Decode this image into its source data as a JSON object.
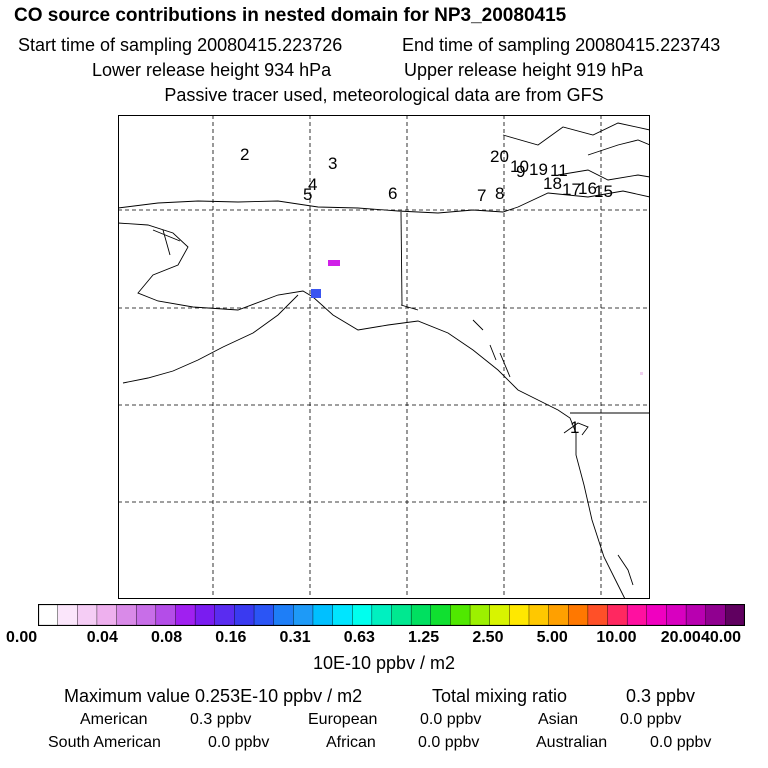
{
  "header": {
    "title": "CO  source contributions in nested domain for NP3_20080415",
    "start": "Start time of sampling 20080415.223726",
    "end": "End time of sampling 20080415.223743",
    "lower": "Lower release height  934 hPa",
    "upper": "Upper release height  919 hPa",
    "note": "Passive tracer used, meteorological data are from GFS"
  },
  "map": {
    "markers": [
      "2",
      "3",
      "4",
      "5",
      "6",
      "7",
      "8",
      "20",
      "10",
      "9",
      "19",
      "11",
      "18",
      "17",
      "16",
      "15",
      "1"
    ]
  },
  "colorbar": {
    "colors": [
      "#ffffff",
      "#fbe6fb",
      "#f5cdf5",
      "#eeb0ee",
      "#d98ae8",
      "#c86ee8",
      "#b44de8",
      "#a020f0",
      "#7a1cf0",
      "#5a2cf0",
      "#3a3af0",
      "#2b55f5",
      "#1e7ef7",
      "#1e9af7",
      "#00c0ff",
      "#00e5ff",
      "#00ffee",
      "#00f0c0",
      "#00e890",
      "#00e060",
      "#10e030",
      "#50e800",
      "#9cf000",
      "#d8f400",
      "#ffe800",
      "#ffc800",
      "#ffa000",
      "#ff7800",
      "#ff5028",
      "#ff2860",
      "#ff10a0",
      "#f000c0",
      "#d800c0",
      "#b800b0",
      "#900090",
      "#600060"
    ],
    "ticks": [
      "0.00",
      "0.04",
      "0.08",
      "0.16",
      "0.31",
      "0.63",
      "1.25",
      "2.50",
      "5.00",
      "10.00",
      "20.00",
      "40.00"
    ],
    "unit": "10E-10 ppbv / m2"
  },
  "stats": {
    "max": "Maximum value  0.253E-10 ppbv / m2",
    "total_label": "Total mixing ratio",
    "total_value": "0.3 ppbv",
    "regions": [
      {
        "label": "American",
        "value": "0.3 ppbv"
      },
      {
        "label": "European",
        "value": "0.0 ppbv"
      },
      {
        "label": "Asian",
        "value": "0.0 ppbv"
      },
      {
        "label": "South American",
        "value": "0.0 ppbv"
      },
      {
        "label": "African",
        "value": "0.0 ppbv"
      },
      {
        "label": "Australian",
        "value": "0.0 ppbv"
      }
    ]
  }
}
